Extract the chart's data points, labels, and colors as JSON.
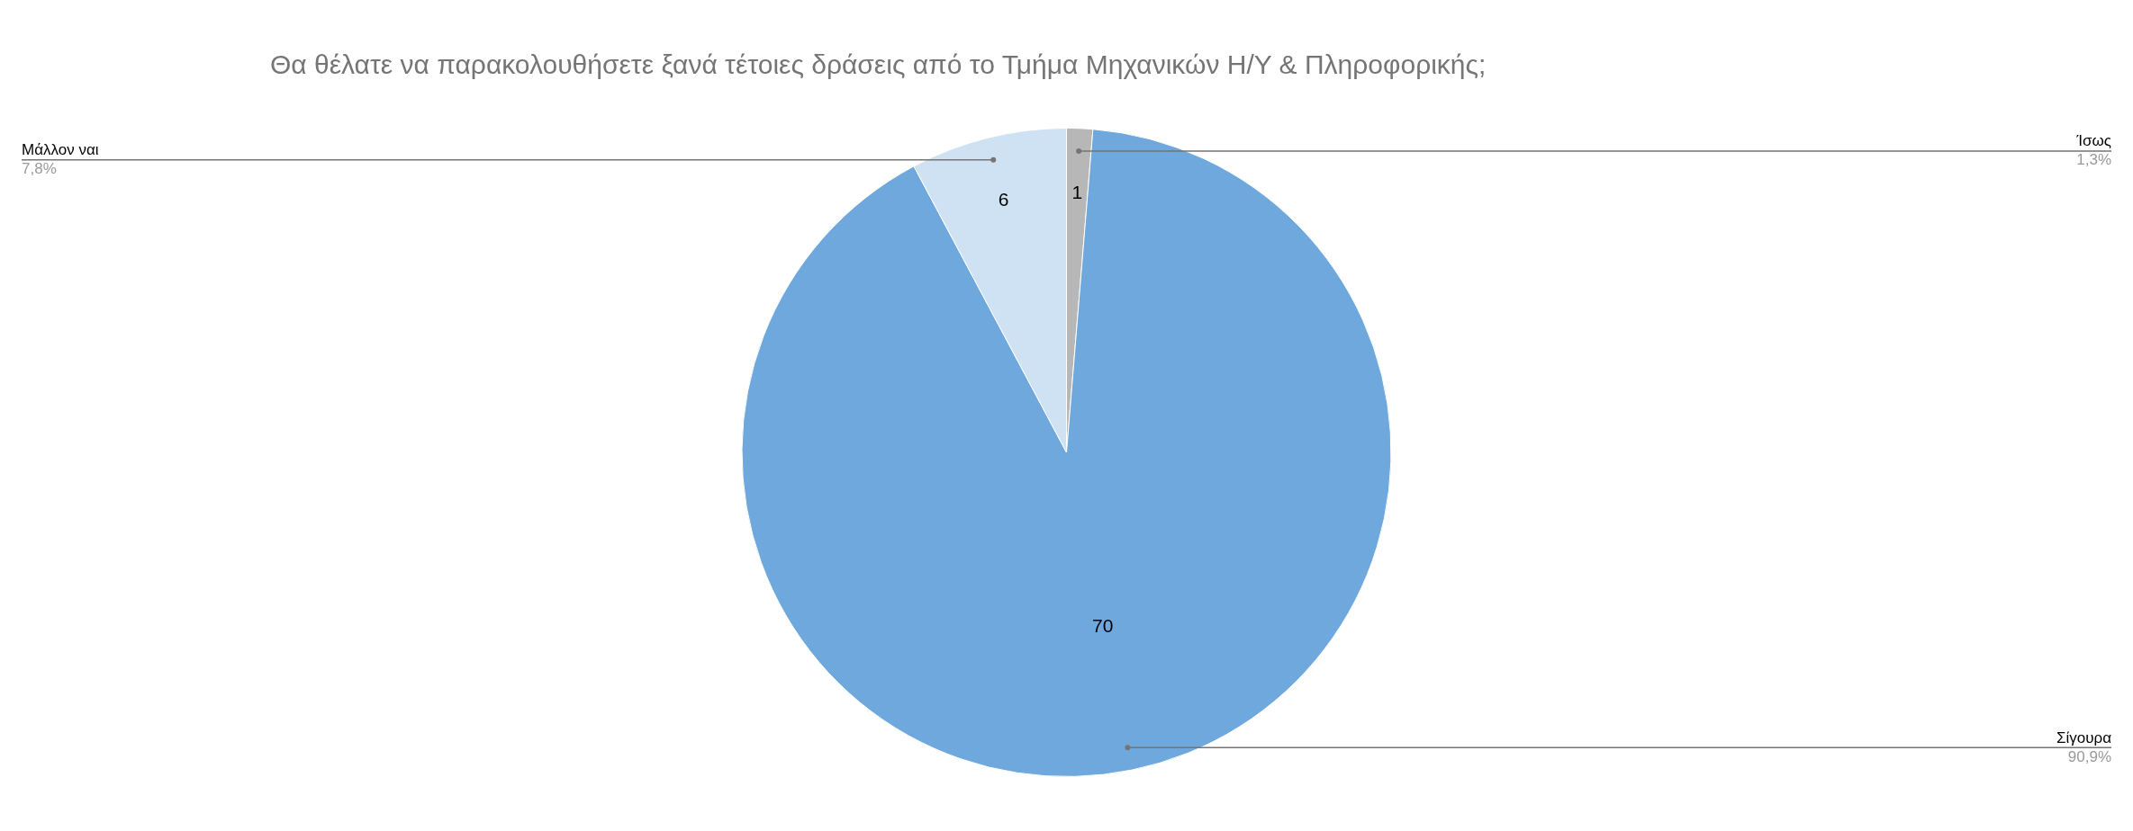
{
  "chart_data": {
    "type": "pie",
    "title": "Θα θέλατε να παρακολουθήσετε ξανά τέτοιες δράσεις από το Τμήμα Μηχανικών Η/Υ & Πληροφορικής;",
    "categories": [
      "Ίσως",
      "Σίγουρα",
      "Μάλλον ναι"
    ],
    "values": [
      1,
      70,
      6
    ],
    "colors": [
      "#b7b7b7",
      "#6fa8dc",
      "#cfe2f3"
    ],
    "value_labels": [
      "1",
      "70",
      "6"
    ],
    "annotations": [
      "1,3%",
      "90,9%",
      "7,8%"
    ],
    "legend": false
  }
}
